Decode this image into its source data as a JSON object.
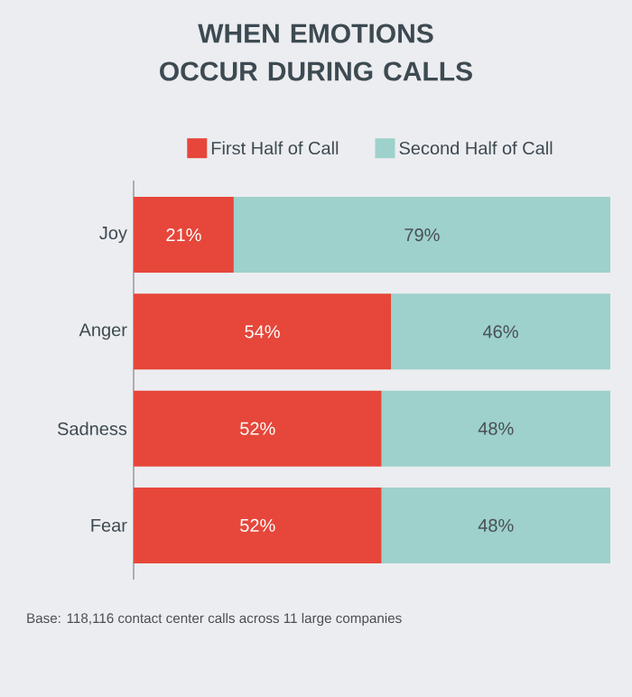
{
  "chart_data": {
    "type": "bar",
    "orientation": "horizontal",
    "stacked": true,
    "title": "WHEN EMOTIONS OCCUR DURING CALLS",
    "categories": [
      "Joy",
      "Anger",
      "Sadness",
      "Fear"
    ],
    "series": [
      {
        "name": "First Half of Call",
        "color": "#e6473a",
        "values": [
          21,
          54,
          52,
          52
        ],
        "value_labels": [
          "21%",
          "54%",
          "52%",
          "52%"
        ]
      },
      {
        "name": "Second Half of Call",
        "color": "#9ed1cb",
        "values": [
          79,
          46,
          48,
          48
        ],
        "value_labels": [
          "79%",
          "46%",
          "48%",
          "48%"
        ]
      }
    ],
    "xlim": [
      0,
      100
    ],
    "legend": "top",
    "tick_labels": "y",
    "annotations": [
      "Base: 118,116 contact center calls across 11 large companies"
    ]
  }
}
